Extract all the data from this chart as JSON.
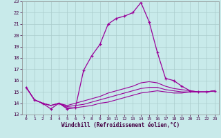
{
  "xlabel": "Windchill (Refroidissement éolien,°C)",
  "bg_color": "#c8eaea",
  "grid_color": "#aacccc",
  "line_color": "#990099",
  "xlim": [
    -0.5,
    23.5
  ],
  "ylim": [
    13,
    23
  ],
  "xticks": [
    0,
    1,
    2,
    3,
    4,
    5,
    6,
    7,
    8,
    9,
    10,
    11,
    12,
    13,
    14,
    15,
    16,
    17,
    18,
    19,
    20,
    21,
    22,
    23
  ],
  "yticks": [
    13,
    14,
    15,
    16,
    17,
    18,
    19,
    20,
    21,
    22,
    23
  ],
  "main_curve_x": [
    0,
    1,
    2,
    3,
    4,
    5,
    6,
    7,
    8,
    9,
    10,
    11,
    12,
    13,
    14,
    15,
    16,
    17,
    18,
    19,
    20,
    21,
    22,
    23
  ],
  "main_curve_y": [
    15.4,
    14.3,
    14.0,
    13.5,
    14.0,
    13.5,
    13.6,
    16.9,
    18.2,
    19.2,
    21.0,
    21.5,
    21.7,
    22.0,
    22.9,
    21.2,
    18.5,
    16.2,
    16.0,
    15.5,
    15.1,
    15.0,
    15.0,
    15.1
  ],
  "flat_curves": [
    [
      15.4,
      14.3,
      14.0,
      13.8,
      14.0,
      13.6,
      13.6,
      13.7,
      13.8,
      14.0,
      14.1,
      14.3,
      14.5,
      14.7,
      14.9,
      15.0,
      15.1,
      15.0,
      14.9,
      14.9,
      15.0,
      15.0,
      15.0,
      15.1
    ],
    [
      15.4,
      14.3,
      14.0,
      13.8,
      14.0,
      13.7,
      13.8,
      13.9,
      14.1,
      14.3,
      14.5,
      14.7,
      14.9,
      15.1,
      15.3,
      15.4,
      15.4,
      15.2,
      15.1,
      15.0,
      15.0,
      15.0,
      15.0,
      15.1
    ],
    [
      15.4,
      14.3,
      14.0,
      13.8,
      14.0,
      13.8,
      14.0,
      14.2,
      14.4,
      14.6,
      14.9,
      15.1,
      15.3,
      15.5,
      15.8,
      15.9,
      15.8,
      15.5,
      15.3,
      15.2,
      15.1,
      15.0,
      15.0,
      15.1
    ]
  ]
}
